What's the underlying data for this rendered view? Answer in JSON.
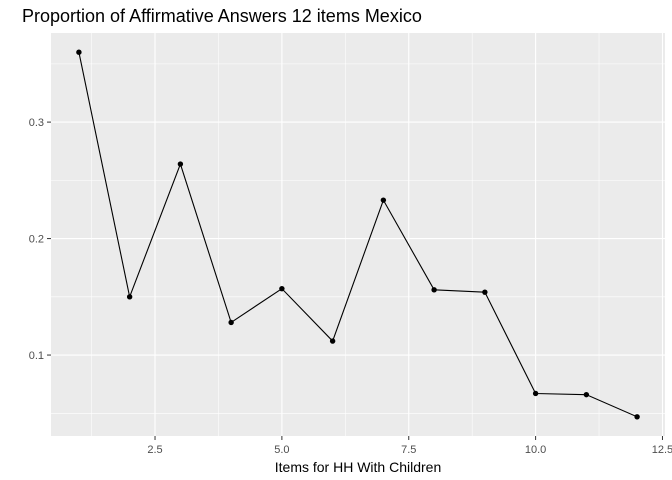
{
  "chart_data": {
    "type": "line",
    "title": "Proportion of Affirmative Answers 12 items Mexico",
    "xlabel": "Items for HH With Children",
    "ylabel": "",
    "x": [
      1,
      2,
      3,
      4,
      5,
      6,
      7,
      8,
      9,
      10,
      11,
      12
    ],
    "series": [
      {
        "values": [
          0.36,
          0.15,
          0.264,
          0.128,
          0.157,
          0.112,
          0.233,
          0.156,
          0.154,
          0.067,
          0.066,
          0.047
        ]
      }
    ],
    "xlim": [
      0.45,
      12.55
    ],
    "ylim": [
      0.0305,
      0.3765
    ],
    "x_ticks": [
      2.5,
      5.0,
      7.5,
      10.0,
      12.5
    ],
    "x_tick_labels": [
      "2.5",
      "5.0",
      "7.5",
      "10.0",
      "12.5"
    ],
    "y_ticks": [
      0.1,
      0.2,
      0.3
    ],
    "y_tick_labels": [
      "0.1",
      "0.2",
      "0.3"
    ],
    "grid": true,
    "legend": "none",
    "colors": {
      "panel_background": "#ebebeb",
      "grid_major": "#ffffff",
      "line": "#000000",
      "point": "#000000",
      "tick_label": "#4d4d4d"
    }
  }
}
